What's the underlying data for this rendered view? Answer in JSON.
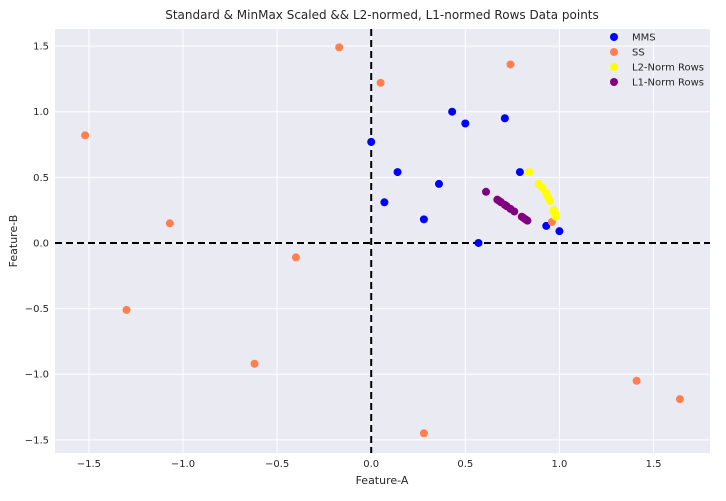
{
  "chart_data": {
    "type": "scatter",
    "title": "Standard & MinMax Scaled && L2-normed, L1-normed Rows Data points",
    "xlabel": "Feature-A",
    "ylabel": "Feature-B",
    "xlim": [
      -1.68,
      1.8
    ],
    "ylim": [
      -1.6,
      1.63
    ],
    "xticks": [
      -1.5,
      -1.0,
      -0.5,
      0.0,
      0.5,
      1.0,
      1.5
    ],
    "xtick_labels": [
      "−1.5",
      "−1.0",
      "−0.5",
      "0.0",
      "0.5",
      "1.0",
      "1.5"
    ],
    "yticks": [
      -1.5,
      -1.0,
      -0.5,
      0.0,
      0.5,
      1.0,
      1.5
    ],
    "ytick_labels": [
      "−1.5",
      "−1.0",
      "−0.5",
      "0.0",
      "0.5",
      "1.0",
      "1.5"
    ],
    "grid": true,
    "legend_position": "top-right",
    "reference_lines": {
      "x": 0,
      "y": 0,
      "style": "dashed",
      "color": "#000000"
    },
    "series": [
      {
        "name": "MMS",
        "color": "#0000ff",
        "points": [
          [
            0.0,
            0.77
          ],
          [
            0.07,
            0.31
          ],
          [
            0.14,
            0.54
          ],
          [
            0.28,
            0.18
          ],
          [
            0.36,
            0.45
          ],
          [
            0.43,
            1.0
          ],
          [
            0.5,
            0.91
          ],
          [
            0.57,
            0.0
          ],
          [
            0.71,
            0.95
          ],
          [
            0.79,
            0.54
          ],
          [
            0.93,
            0.13
          ],
          [
            1.0,
            0.09
          ]
        ]
      },
      {
        "name": "SS",
        "color": "#ff7f50",
        "points": [
          [
            -1.52,
            0.82
          ],
          [
            -1.3,
            -0.51
          ],
          [
            -1.07,
            0.15
          ],
          [
            -0.62,
            -0.92
          ],
          [
            -0.4,
            -0.11
          ],
          [
            -0.17,
            1.49
          ],
          [
            0.05,
            1.22
          ],
          [
            0.28,
            -1.45
          ],
          [
            0.74,
            1.36
          ],
          [
            0.96,
            0.16
          ],
          [
            1.41,
            -1.05
          ],
          [
            1.64,
            -1.19
          ]
        ]
      },
      {
        "name": "L2-Norm Rows",
        "color": "#ffff00",
        "points": [
          [
            0.84,
            0.54
          ],
          [
            0.89,
            0.45
          ],
          [
            0.91,
            0.42
          ],
          [
            0.93,
            0.38
          ],
          [
            0.94,
            0.35
          ],
          [
            0.95,
            0.32
          ],
          [
            0.97,
            0.25
          ],
          [
            0.97,
            0.24
          ],
          [
            0.98,
            0.22
          ],
          [
            0.98,
            0.2
          ]
        ]
      },
      {
        "name": "L1-Norm Rows",
        "color": "#800080",
        "points": [
          [
            0.61,
            0.39
          ],
          [
            0.67,
            0.33
          ],
          [
            0.68,
            0.32
          ],
          [
            0.69,
            0.31
          ],
          [
            0.71,
            0.29
          ],
          [
            0.72,
            0.28
          ],
          [
            0.74,
            0.26
          ],
          [
            0.76,
            0.24
          ],
          [
            0.8,
            0.2
          ],
          [
            0.81,
            0.19
          ],
          [
            0.82,
            0.18
          ],
          [
            0.83,
            0.17
          ]
        ]
      }
    ]
  }
}
